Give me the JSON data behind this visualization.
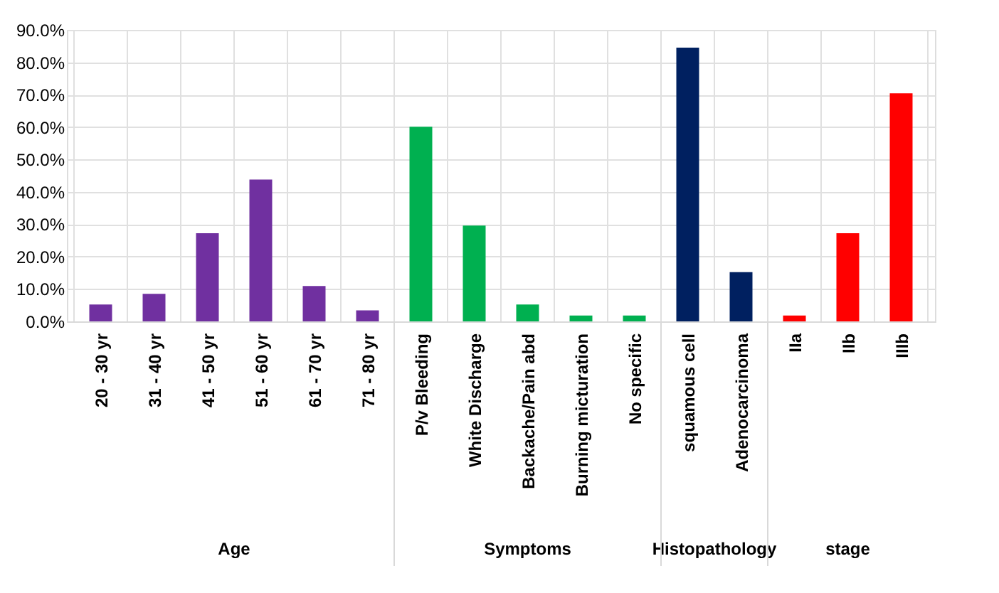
{
  "chart_data": {
    "type": "bar",
    "categories": [
      "20 - 30 yr",
      "31 - 40 yr",
      "41 - 50 yr",
      "51 - 60 yr",
      "61 - 70 yr",
      "71 - 80 yr",
      "P/v Bleeding",
      "White Discharge",
      "Backache/Pain abd",
      "Burning micturation",
      "No specific",
      "squamous cell",
      "Adenocarcinoma",
      "IIa",
      "IIb",
      "IIIb"
    ],
    "series": [
      {
        "color": "#7030a0",
        "values": [
          5.2,
          8.5,
          27.2,
          43.8,
          10.9,
          3.4,
          null,
          null,
          null,
          null,
          null,
          null,
          null,
          null,
          null,
          null
        ]
      },
      {
        "color": "#00b050",
        "values": [
          null,
          null,
          null,
          null,
          null,
          null,
          60.1,
          29.6,
          5.2,
          1.8,
          1.8,
          null,
          null,
          null,
          null,
          null
        ]
      },
      {
        "color": "#002060",
        "values": [
          null,
          null,
          null,
          null,
          null,
          null,
          null,
          null,
          null,
          null,
          null,
          84.5,
          15.2,
          null,
          null,
          null
        ]
      },
      {
        "color": "#ff0000",
        "values": [
          null,
          null,
          null,
          null,
          null,
          null,
          null,
          null,
          null,
          null,
          null,
          null,
          null,
          1.8,
          27.2,
          70.4
        ]
      }
    ],
    "ylim": [
      0,
      90
    ],
    "yticks": [
      {
        "value": 0,
        "label": "0.0%"
      },
      {
        "value": 10,
        "label": "10.0%"
      },
      {
        "value": 20,
        "label": "20.0%"
      },
      {
        "value": 30,
        "label": "30.0%"
      },
      {
        "value": 40,
        "label": "40.0%"
      },
      {
        "value": 50,
        "label": "50.0%"
      },
      {
        "value": 60,
        "label": "60.0%"
      },
      {
        "value": 70,
        "label": "70.0%"
      },
      {
        "value": 80,
        "label": "80.0%"
      },
      {
        "value": 90,
        "label": "90.0%"
      }
    ],
    "grid": true,
    "annotations": [
      "Age",
      "Symptoms",
      "Histopathology",
      "stage"
    ]
  }
}
